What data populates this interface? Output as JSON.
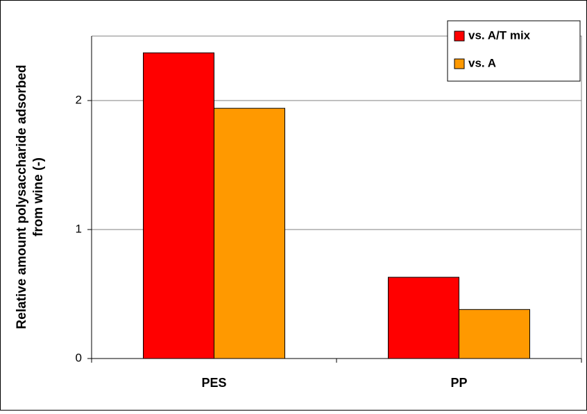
{
  "chart_data": {
    "type": "bar",
    "ylabel": [
      "Relative amount polysaccharide adsorbed",
      "from wine (-)"
    ],
    "categories": [
      "PES",
      "PP"
    ],
    "series": [
      {
        "name": "vs. A/T mix",
        "color": "#ff0000",
        "values": [
          2.37,
          0.63
        ]
      },
      {
        "name": "vs. A",
        "color": "#ff9900",
        "values": [
          1.94,
          0.38
        ]
      }
    ],
    "ylim": [
      0,
      2.5
    ],
    "yticks": [
      0,
      1,
      2
    ],
    "grid": true,
    "legend": "upper right"
  }
}
